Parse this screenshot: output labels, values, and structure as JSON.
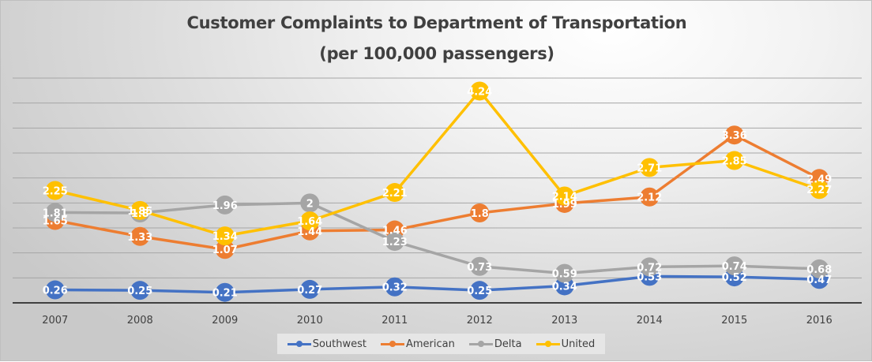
{
  "chart_data": {
    "type": "line",
    "title": "Customer Complaints to Department of Transportation",
    "subtitle": "(per 100,000 passengers)",
    "xlabel": "",
    "ylabel": "",
    "categories": [
      "2007",
      "2008",
      "2009",
      "2010",
      "2011",
      "2012",
      "2013",
      "2014",
      "2015",
      "2016"
    ],
    "ylim": [
      0,
      4.5
    ],
    "ygrid_step": 0.5,
    "grid": true,
    "y_tick_labels_visible": false,
    "legend_position": "bottom",
    "data_labels": true,
    "series": [
      {
        "name": "Southwest",
        "color": "#4472C4",
        "values": [
          0.26,
          0.25,
          0.21,
          0.27,
          0.32,
          0.25,
          0.34,
          0.53,
          0.52,
          0.47
        ]
      },
      {
        "name": "American",
        "color": "#ED7D31",
        "values": [
          1.65,
          1.33,
          1.07,
          1.44,
          1.46,
          1.8,
          1.99,
          2.12,
          3.36,
          2.49
        ]
      },
      {
        "name": "Delta",
        "color": "#A5A5A5",
        "values": [
          1.81,
          1.8,
          1.96,
          2,
          1.23,
          0.73,
          0.59,
          0.72,
          0.74,
          0.68
        ]
      },
      {
        "name": "United",
        "color": "#FFC000",
        "values": [
          2.25,
          1.85,
          1.34,
          1.64,
          2.21,
          4.24,
          2.14,
          2.71,
          2.85,
          2.27
        ]
      }
    ]
  }
}
